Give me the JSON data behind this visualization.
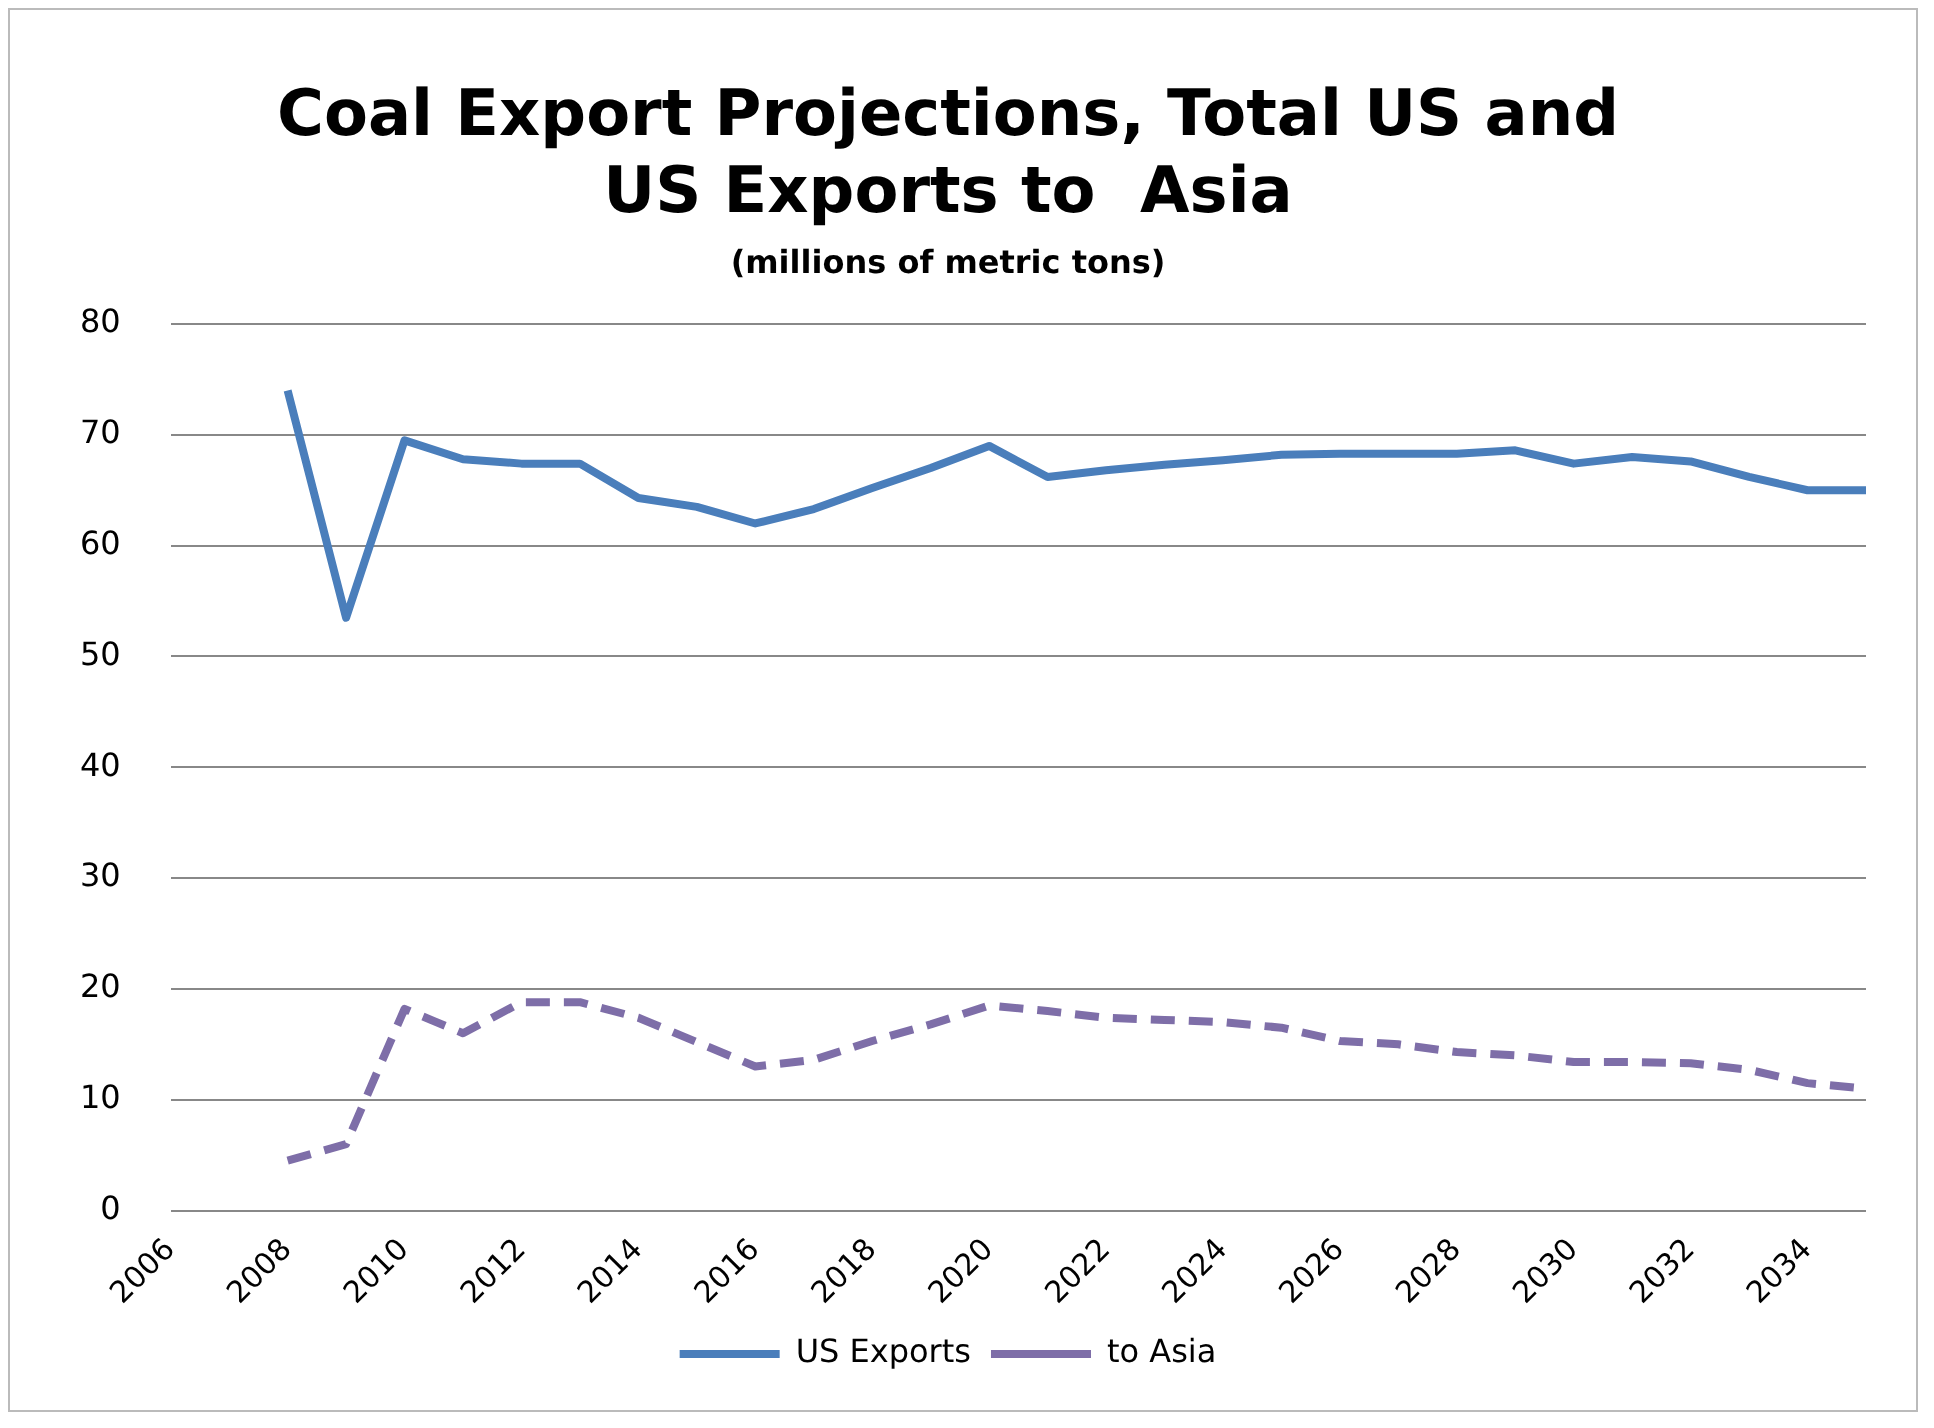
{
  "chart_data": {
    "type": "line",
    "title": "Coal Export Projections, Total US and US Exports to  Asia",
    "subtitle": "(millions of metric tons)",
    "categories": [
      "2006",
      null,
      "2008",
      null,
      "2010",
      null,
      "2012",
      null,
      "2014",
      null,
      "2016",
      null,
      "2018",
      null,
      "2020",
      null,
      "2022",
      null,
      "2024",
      null,
      "2026",
      null,
      "2028",
      null,
      "2030",
      null,
      "2032",
      null,
      "2034",
      null
    ],
    "ylim": [
      0,
      80
    ],
    "yticks": [
      0,
      10,
      20,
      30,
      40,
      50,
      60,
      70,
      80
    ],
    "grid": "y",
    "legend": "bottom",
    "marker": "none",
    "series": [
      {
        "name": "US Exports",
        "color": "#4a7ebb",
        "line_style": "solid",
        "values": [
          null,
          null,
          74,
          53.5,
          69.5,
          67.8,
          67.4,
          67.4,
          64.3,
          63.5,
          62,
          63.3,
          65.2,
          67,
          69,
          66.2,
          66.8,
          67.3,
          67.7,
          68.2,
          68.3,
          68.3,
          68.3,
          68.6,
          67.4,
          68,
          67.6,
          66.2,
          65,
          65
        ]
      },
      {
        "name": "to Asia",
        "color": "#7e6ea8",
        "line_style": "dashed",
        "values": [
          null,
          null,
          4.5,
          6,
          18.2,
          16,
          18.8,
          18.8,
          17.4,
          15.2,
          13,
          13.6,
          15.3,
          16.8,
          18.5,
          18,
          17.4,
          17.2,
          17,
          16.5,
          15.3,
          15,
          14.3,
          14,
          13.4,
          13.4,
          13.3,
          12.7,
          11.5,
          11
        ]
      }
    ]
  }
}
